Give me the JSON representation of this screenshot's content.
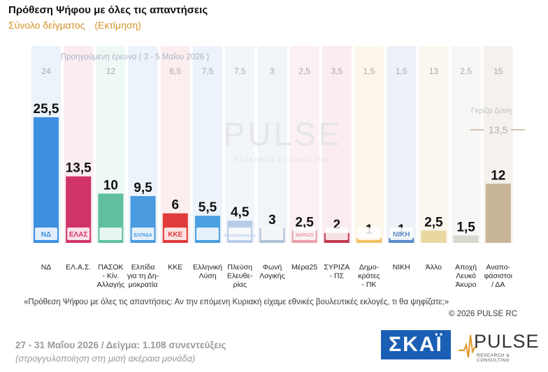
{
  "header": {
    "title": "Πρόθεση Ψήφου με όλες τις απαντήσεις",
    "subtitle_left": "Σύνολο δείγματος",
    "subtitle_right": "(Εκτίμηση)"
  },
  "chart_data": {
    "type": "bar",
    "previous_survey_label": "Προηγούμενη έρευνα ( 3 - 5 Μαΐου 2026 )",
    "categories": [
      "ΝΔ",
      "ΕΛ.Α.Σ.",
      "ΠΑΣΟΚ - Κίν. Αλλαγής",
      "Ελπίδα για τη Δημοκρατία",
      "ΚΚΕ",
      "Ελληνική Λύση",
      "Πλεύση Ελευθερίας",
      "Φωνή Λογικής",
      "Μέρα25",
      "ΣΥΡΙΖΑ - ΠΣ",
      "Δημοκράτες - ΠΚ",
      "ΝΙΚΗ",
      "Άλλο",
      "Αποχή Λευκό Άκυρο",
      "Αναποφάσιστοι / ΔΑ"
    ],
    "category_label_lines": [
      [
        "ΝΔ"
      ],
      [
        "ΕΛ.Α.Σ."
      ],
      [
        "ΠΑΣΟΚ",
        "- Κίν.",
        "Αλλαγής"
      ],
      [
        "Ελπίδα",
        "για τη Δη-",
        "μοκρατία"
      ],
      [
        "ΚΚΕ"
      ],
      [
        "Ελληνική",
        "Λύση"
      ],
      [
        "Πλεύση",
        "Ελευθε-",
        "ρίας"
      ],
      [
        "Φωνή",
        "Λογικής"
      ],
      [
        "Μέρα25"
      ],
      [
        "ΣΥΡΙΖΑ",
        "- ΠΣ"
      ],
      [
        "Δημο-",
        "κράτες",
        "- ΠΚ"
      ],
      [
        "ΝΙΚΗ"
      ],
      [
        "Άλλο"
      ],
      [
        "Αποχή",
        "Λευκό",
        "Άκυρο"
      ],
      [
        "Αναπο-",
        "φάσιστοι",
        "/ ΔΑ"
      ]
    ],
    "value_labels": [
      "25,5",
      "13,5",
      "10",
      "9,5",
      "6",
      "5,5",
      "4,5",
      "3",
      "2,5",
      "2",
      "1",
      "1",
      "2,5",
      "1,5",
      "12"
    ],
    "values": [
      25.5,
      13.5,
      10,
      9.5,
      6,
      5.5,
      4.5,
      3,
      2.5,
      2,
      1,
      1,
      2.5,
      1.5,
      12
    ],
    "previous_labels": [
      "24",
      "",
      "12",
      "",
      "6,5",
      "7,5",
      "7,5",
      "3",
      "2,5",
      "3,5",
      "1,5",
      "1,5",
      "13",
      "2,5",
      "15"
    ],
    "colors": [
      "#3d8fe0",
      "#d0336a",
      "#5fbf9f",
      "#4a9ae0",
      "#e03a3a",
      "#4aa0e0",
      "#b8cce8",
      "#b0c0d8",
      "#e8a0a8",
      "#c23850",
      "#f0c060",
      "#5a8ac8",
      "#e8d8a0",
      "#d8d8d0",
      "#c8b498"
    ],
    "column_bg_colors": [
      "#dbe9f8",
      "#f7dce6",
      "#e0f2ec",
      "#dde9f7",
      "#f9e0e0",
      "#dce9f6",
      "#e8eef7",
      "#e6ebf2",
      "#f8e4e8",
      "#f5dde3",
      "#fbf0da",
      "#dfe7f4",
      "#f6f1e2",
      "#f0f0ec",
      "#ede6dc"
    ],
    "logos": [
      "ΝΔ",
      "ΕΛΑΣ",
      "",
      "ΕΛΠΙΔΑ",
      "ΚΚΕ",
      "",
      "Πλεύση Ελευθερίας",
      "",
      "ΜέΡΑ25",
      "",
      "",
      "ΝΙΚΗ",
      "",
      "",
      ""
    ],
    "logo_icons": [
      "nd-logo-icon",
      "elas-logo-icon",
      "pasok-logo-icon",
      "elpida-logo-icon",
      "kke-logo-icon",
      "elliniki-lysi-logo-icon",
      "plefsi-logo-icon",
      "foni-logikis-logo-icon",
      "mera25-logo-icon",
      "syriza-logo-icon",
      "dimokrates-logo-icon",
      "niki-logo-icon",
      "",
      "",
      ""
    ],
    "grey_zone_label": "Γκρίζα ζώνη",
    "grey_zone_value": "13,5",
    "watermark_main": "PULSE",
    "watermark_sub": "RESEARCH & CONSULTING",
    "ylim": [
      0,
      26
    ]
  },
  "footer": {
    "question": "«Πρόθεση Ψήφου με όλες τις απαντήσεις: Αν την επόμενη Κυριακή είχαμε εθνικές βουλευτικές εκλογές, τι θα ψηφίζατε;»",
    "copyright": "©  2026  PULSE RC",
    "dates": "27 - 31  Μαΐου 2026  /  Δείγμα:  1.108 συνεντεύξεις",
    "rounding": "(στρογγυλοποίηση στη μισή ακέραια μονάδα)"
  },
  "logos": {
    "skai": "ΣΚΑΪ",
    "pulse": "PULSE",
    "pulse_sub": "RESEARCH & CONSULTING"
  }
}
